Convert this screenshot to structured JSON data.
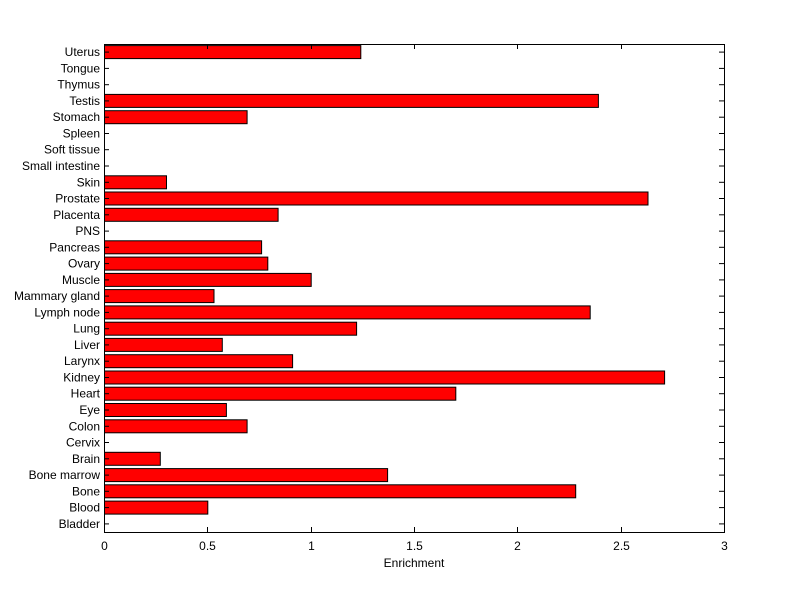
{
  "chart_data": {
    "type": "bar",
    "orientation": "horizontal",
    "title": "",
    "xlabel": "Enrichment",
    "ylabel": "",
    "xlim": [
      0,
      3
    ],
    "xticks": [
      0,
      0.5,
      1,
      1.5,
      2,
      2.5,
      3
    ],
    "xtick_labels": [
      "0",
      "0.5",
      "1",
      "1.5",
      "2",
      "2.5",
      "3"
    ],
    "grid": false,
    "legend": "none",
    "bar_color": "#ff0000",
    "bar_edge_color": "#000000",
    "categories": [
      "Bladder",
      "Blood",
      "Bone",
      "Bone marrow",
      "Brain",
      "Cervix",
      "Colon",
      "Eye",
      "Heart",
      "Kidney",
      "Larynx",
      "Liver",
      "Lung",
      "Lymph node",
      "Mammary gland",
      "Muscle",
      "Ovary",
      "Pancreas",
      "PNS",
      "Placenta",
      "Prostate",
      "Skin",
      "Small intestine",
      "Soft tissue",
      "Spleen",
      "Stomach",
      "Testis",
      "Thymus",
      "Tongue",
      "Uterus"
    ],
    "values": [
      0,
      0.5,
      2.28,
      1.37,
      0.27,
      0,
      0.69,
      0.59,
      1.7,
      2.71,
      0.91,
      0.57,
      1.22,
      2.35,
      0.53,
      1.0,
      0.79,
      0.76,
      0,
      0.84,
      2.63,
      0.3,
      0,
      0,
      0,
      0.69,
      2.39,
      0,
      0,
      1.24
    ]
  }
}
